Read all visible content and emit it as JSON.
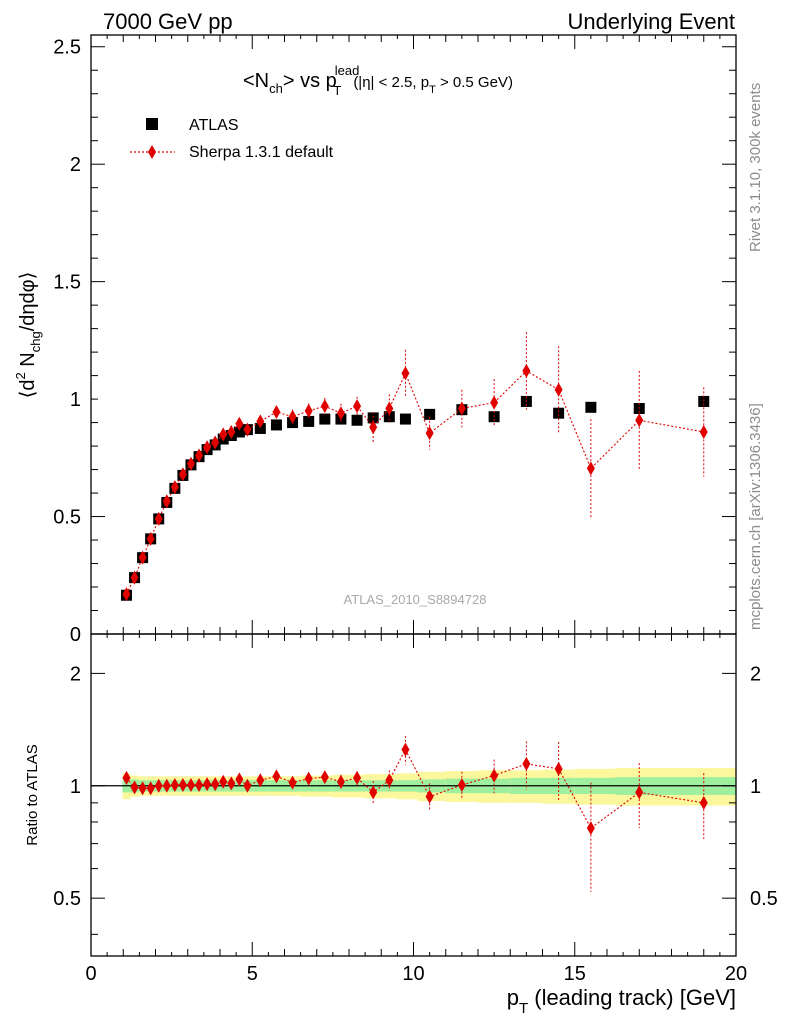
{
  "header": {
    "left": "7000 GeV pp",
    "right": "Underlying Event"
  },
  "side_labels": {
    "rivet": "Rivet 3.1.10,  300k events",
    "mcplots": "mcplots.cern.ch [arXiv:1306.3436]"
  },
  "watermark": "ATLAS_2010_S8894728",
  "title": {
    "prefix": "<N",
    "ch": "ch",
    "vs": "> vs p",
    "lead": "lead",
    "T": "T",
    "cuts_a": "(|η| < 2.5, p",
    "cuts_T": "T",
    "cuts_b": " > 0.5 GeV)"
  },
  "main_ylabel": {
    "open": "⟨d",
    "sup2": "2",
    "n": " N",
    "chg": "chg",
    "rest": "/dηdφ⟩"
  },
  "ratio_ylabel": "Ratio to ATLAS",
  "xlabel": {
    "p": "p",
    "T": "T",
    "rest": " (leading track) [GeV]"
  },
  "legend": [
    {
      "label": "ATLAS",
      "color": "#000000",
      "marker": "square"
    },
    {
      "label": "Sherpa 1.3.1 default",
      "color": "#e00000",
      "marker": "diamond"
    }
  ],
  "chart_data": {
    "type": "scatter",
    "xlim": [
      0,
      20
    ],
    "main": {
      "ylim": [
        0,
        2.55
      ],
      "y_ticks": [
        "0",
        "0.5",
        "1",
        "1.5",
        "2",
        "2.5"
      ],
      "x_ticks": [
        "0",
        "5",
        "10",
        "15",
        "20"
      ]
    },
    "ratio": {
      "ylim": [
        0.35,
        2.55
      ],
      "y_ticks": [
        "0.5",
        "1",
        "2"
      ],
      "reference_line": 1
    },
    "x": [
      1.1,
      1.35,
      1.6,
      1.85,
      2.1,
      2.35,
      2.6,
      2.85,
      3.1,
      3.35,
      3.6,
      3.85,
      4.1,
      4.35,
      4.6,
      4.85,
      5.25,
      5.75,
      6.25,
      6.75,
      7.25,
      7.75,
      8.25,
      8.75,
      9.25,
      9.75,
      10.5,
      11.5,
      12.5,
      13.5,
      14.5,
      15.5,
      17.0,
      19.0
    ],
    "series": [
      {
        "name": "ATLAS",
        "values": [
          0.165,
          0.24,
          0.325,
          0.405,
          0.49,
          0.56,
          0.62,
          0.675,
          0.72,
          0.755,
          0.785,
          0.805,
          0.83,
          0.845,
          0.86,
          0.87,
          0.875,
          0.89,
          0.9,
          0.905,
          0.915,
          0.915,
          0.91,
          0.92,
          0.925,
          0.915,
          0.935,
          0.955,
          0.925,
          0.99,
          0.94,
          0.965,
          0.96,
          0.99
        ],
        "band_inner": [
          0.04,
          0.04,
          0.035,
          0.035,
          0.035,
          0.035,
          0.035,
          0.035,
          0.035,
          0.035,
          0.035,
          0.035,
          0.035,
          0.035,
          0.035,
          0.035,
          0.035,
          0.035,
          0.035,
          0.035,
          0.035,
          0.035,
          0.035,
          0.035,
          0.035,
          0.035,
          0.04,
          0.045,
          0.045,
          0.05,
          0.05,
          0.05,
          0.055,
          0.055
        ],
        "band_outer": [
          0.08,
          0.065,
          0.06,
          0.06,
          0.06,
          0.06,
          0.06,
          0.06,
          0.06,
          0.06,
          0.06,
          0.06,
          0.06,
          0.06,
          0.06,
          0.06,
          0.06,
          0.06,
          0.06,
          0.065,
          0.065,
          0.07,
          0.07,
          0.075,
          0.075,
          0.08,
          0.09,
          0.095,
          0.1,
          0.1,
          0.105,
          0.11,
          0.115,
          0.115
        ]
      },
      {
        "name": "Sherpa 1.3.1 default",
        "values": [
          0.17,
          0.24,
          0.325,
          0.405,
          0.49,
          0.565,
          0.625,
          0.68,
          0.725,
          0.76,
          0.795,
          0.815,
          0.85,
          0.86,
          0.895,
          0.87,
          0.905,
          0.945,
          0.925,
          0.95,
          0.97,
          0.94,
          0.97,
          0.88,
          0.96,
          1.11,
          0.855,
          0.96,
          0.985,
          1.12,
          1.04,
          0.705,
          0.91,
          0.86
        ],
        "errors": [
          0.01,
          0.01,
          0.01,
          0.01,
          0.01,
          0.012,
          0.012,
          0.012,
          0.012,
          0.012,
          0.012,
          0.014,
          0.016,
          0.018,
          0.02,
          0.022,
          0.022,
          0.025,
          0.03,
          0.032,
          0.035,
          0.04,
          0.04,
          0.065,
          0.06,
          0.1,
          0.07,
          0.08,
          0.1,
          0.165,
          0.185,
          0.21,
          0.21,
          0.19
        ],
        "ratio": [
          1.05,
          0.99,
          0.985,
          0.985,
          1.0,
          1.0,
          1.005,
          1.005,
          1.005,
          1.005,
          1.01,
          1.01,
          1.025,
          1.015,
          1.04,
          1.0,
          1.035,
          1.06,
          1.02,
          1.045,
          1.055,
          1.025,
          1.05,
          0.96,
          1.035,
          1.25,
          0.935,
          1.005,
          1.065,
          1.145,
          1.11,
          0.77,
          0.96,
          0.9
        ],
        "ratio_errors": [
          0.03,
          0.02,
          0.02,
          0.02,
          0.02,
          0.02,
          0.02,
          0.02,
          0.02,
          0.02,
          0.02,
          0.02,
          0.02,
          0.022,
          0.025,
          0.025,
          0.025,
          0.03,
          0.035,
          0.035,
          0.04,
          0.045,
          0.045,
          0.07,
          0.065,
          0.11,
          0.08,
          0.085,
          0.11,
          0.17,
          0.2,
          0.25,
          0.19,
          0.18
        ]
      }
    ]
  }
}
